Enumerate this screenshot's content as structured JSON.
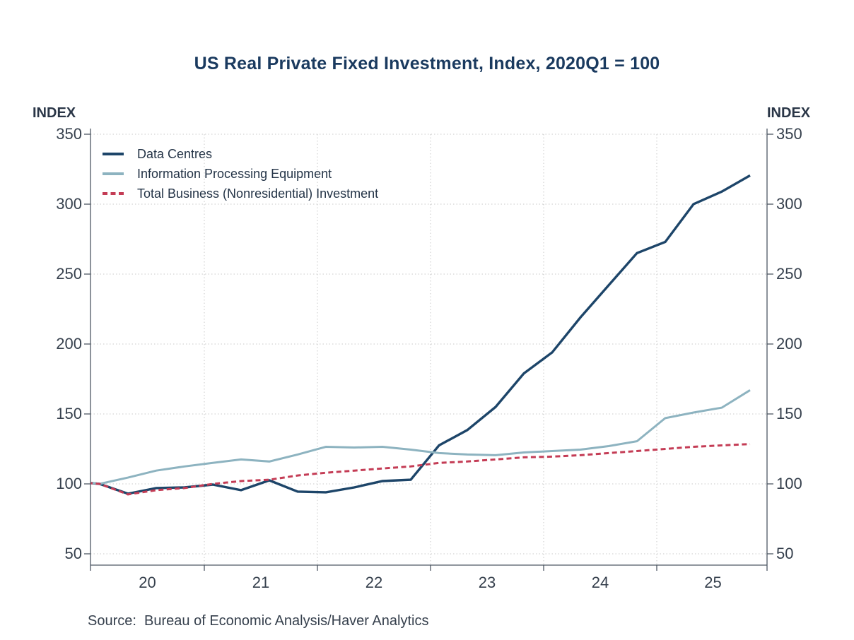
{
  "title": "US Real Private Fixed Investment, Index, 2020Q1 = 100",
  "source": "Source:  Bureau of Economic Analysis/Haver Analytics",
  "axis_unit_left": "INDEX",
  "axis_unit_right": "INDEX",
  "colors": {
    "title_text": "#1a3a5f",
    "axis_text": "#36404d",
    "axis_line": "#4d5763",
    "gridline": "#c9c9c9",
    "data_centres": "#1d4569",
    "info_processing": "#8db3c0",
    "total_business": "#c43c55"
  },
  "chart_data": {
    "type": "line",
    "title": "US Real Private Fixed Investment, Index, 2020Q1 = 100",
    "x_unit": "quarterly",
    "categories": [
      "2019Q4",
      "2020Q1",
      "2020Q2",
      "2020Q3",
      "2020Q4",
      "2021Q1",
      "2021Q2",
      "2021Q3",
      "2021Q4",
      "2022Q1",
      "2022Q2",
      "2022Q3",
      "2022Q4",
      "2023Q1",
      "2023Q2",
      "2023Q3",
      "2023Q4",
      "2024Q1",
      "2024Q2",
      "2024Q3",
      "2024Q4",
      "2025Q1",
      "2025Q2",
      "2025Q3",
      "2025Q4"
    ],
    "series": [
      {
        "name": "Data Centres",
        "color": "#1d4569",
        "style": "solid",
        "values": [
          102,
          100,
          93,
          97,
          97.5,
          99.5,
          95.5,
          102.5,
          94.5,
          94,
          97.5,
          102,
          103,
          127.5,
          138.5,
          155,
          179,
          194,
          219,
          242,
          265,
          273,
          300,
          309,
          320.5
        ]
      },
      {
        "name": "Information Processing Equipment",
        "color": "#8db3c0",
        "style": "solid",
        "values": [
          102.5,
          100,
          104.5,
          109.5,
          112.5,
          115,
          117.5,
          116,
          121,
          126.5,
          126,
          126.5,
          124.5,
          122,
          121,
          120.5,
          122.5,
          123.5,
          124.5,
          127,
          130.5,
          147,
          151,
          154.5,
          167
        ]
      },
      {
        "name": "Total Business (Nonresidential) Investment",
        "color": "#c43c55",
        "style": "dashed",
        "values": [
          101.5,
          100,
          92.5,
          95.5,
          97,
          100,
          102,
          103,
          106,
          108,
          109.5,
          111,
          112.5,
          115,
          116,
          117.5,
          119,
          119.5,
          120.5,
          122,
          123.5,
          125,
          126.5,
          127.5,
          128.5
        ]
      }
    ],
    "ylabel_left": "INDEX",
    "ylabel_right": "INDEX",
    "ylim": [
      40,
      357
    ],
    "yticks": [
      350,
      300,
      250,
      200,
      150,
      100,
      50
    ],
    "xtick_labels": [
      "20",
      "21",
      "22",
      "23",
      "24",
      "25"
    ],
    "index_base": "2020Q1 = 100",
    "grid": "dotted",
    "legend_position": "upper-left-inside"
  }
}
